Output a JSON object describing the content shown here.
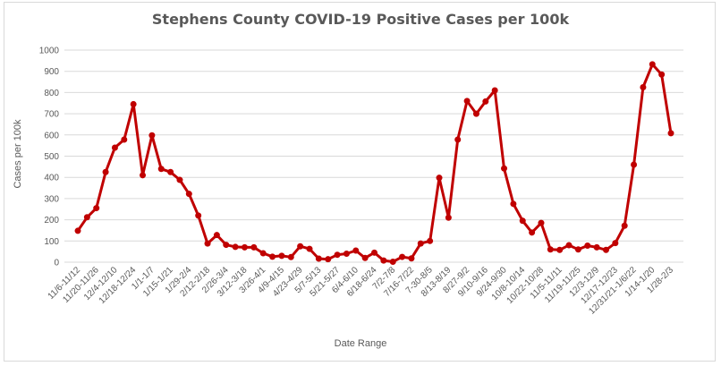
{
  "chart_data": {
    "type": "line",
    "title": "Stephens County COVID-19 Positive Cases per 100k",
    "xlabel": "Date Range",
    "ylabel": "Cases per 100k",
    "ylim": [
      0,
      1000
    ],
    "yticks": [
      0,
      100,
      200,
      300,
      400,
      500,
      600,
      700,
      800,
      900,
      1000
    ],
    "grid": true,
    "legend": "none",
    "color": "#c00000",
    "x_tick_labels": [
      "11/6-11/12",
      "11/20-11/26",
      "12/4-12/10",
      "12/18-12/24",
      "1/1-1/7",
      "1/15-1/21",
      "1/29-2/4",
      "2/12-2/18",
      "2/26-3/4",
      "3/12-3/18",
      "3/26-4/1",
      "4/9-4/15",
      "4/23-4/29",
      "5/7-5/13",
      "5/21-5/27",
      "6/4-6/10",
      "6/18-6/24",
      "7/2-7/8",
      "7/16-7/22",
      "7-30-8/5",
      "8/13-8/19",
      "8/27-9/2",
      "9/10-9/16",
      "9/24-9/30",
      "10/8-10/14",
      "10/22-10/28",
      "11/5-11/11",
      "11/19-11/25",
      "12/3-12/9",
      "12/17-12/23",
      "12/31/21-1/6/22",
      "1/14-1/20",
      "1/28-2/3"
    ],
    "series": [
      {
        "values": [
          148,
          212,
          255,
          425,
          540,
          578,
          745,
          410,
          598,
          440,
          425,
          388,
          322,
          220,
          88,
          128,
          82,
          72,
          70,
          70,
          42,
          26,
          30,
          24,
          75,
          63,
          17,
          14,
          35,
          40,
          55,
          20,
          45,
          8,
          2,
          25,
          18,
          88,
          100,
          398,
          210,
          578,
          760,
          700,
          758,
          810,
          442,
          275,
          195,
          140,
          185,
          60,
          58,
          80,
          60,
          78,
          70,
          58,
          90,
          172,
          460,
          825,
          933,
          885,
          608
        ]
      }
    ]
  }
}
